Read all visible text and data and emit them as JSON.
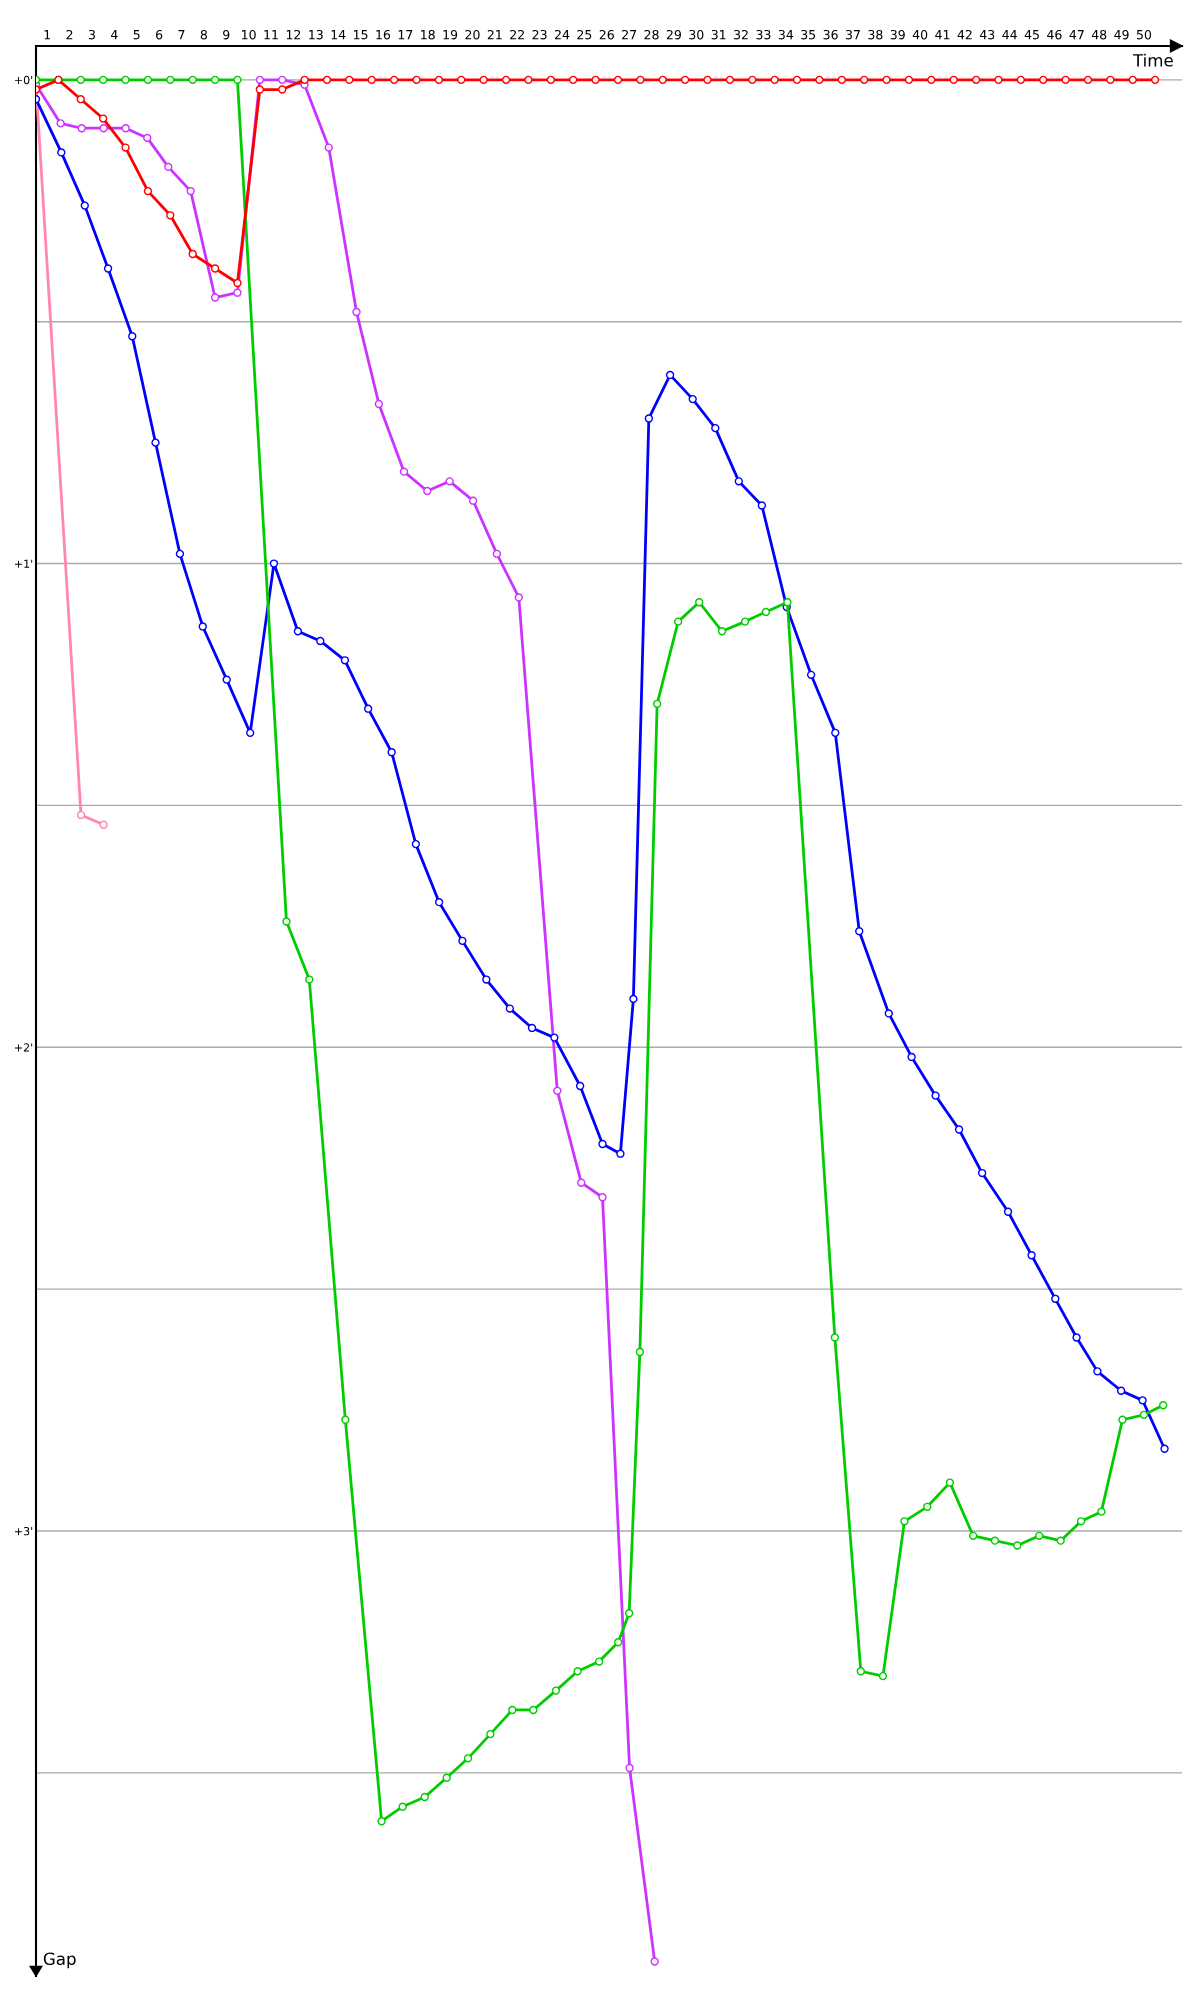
{
  "chart_data": {
    "type": "line",
    "xlabel": "Time",
    "ylabel": "Gap",
    "xlim": [
      0.5,
      51.7
    ],
    "ylim": [
      3.92,
      -0.07
    ],
    "xticks": [
      1,
      2,
      3,
      4,
      5,
      6,
      7,
      8,
      9,
      10,
      11,
      12,
      13,
      14,
      15,
      16,
      17,
      18,
      19,
      20,
      21,
      22,
      23,
      24,
      25,
      26,
      27,
      28,
      29,
      30,
      31,
      32,
      33,
      34,
      35,
      36,
      37,
      38,
      39,
      40,
      41,
      42,
      43,
      44,
      45,
      46,
      47,
      48,
      49,
      50
    ],
    "yticks": [
      {
        "value": 0,
        "label": "+0'"
      },
      {
        "value": 0.5,
        "label": null
      },
      {
        "value": 1,
        "label": "+1'"
      },
      {
        "value": 1.5,
        "label": null
      },
      {
        "value": 2,
        "label": "+2'"
      },
      {
        "value": 2.5,
        "label": null
      },
      {
        "value": 3,
        "label": "+3'"
      },
      {
        "value": 3.5,
        "label": null
      }
    ],
    "grid": "y",
    "marker": "circle",
    "line_style": "solid",
    "series": [
      {
        "color": "#ff88aa",
        "x": [
          0.5,
          2.51,
          3.52
        ],
        "values": [
          0.01,
          1.52,
          1.54
        ]
      },
      {
        "color": "#cc33ff",
        "x": [
          0.5,
          1.6,
          2.54,
          3.52,
          4.51,
          5.47,
          6.41,
          7.41,
          8.5,
          9.5,
          10.5,
          11.5,
          12.5,
          13.58,
          14.82,
          15.82,
          16.94,
          17.98,
          18.98,
          20.03,
          21.09,
          22.07,
          23.79,
          24.86,
          25.81,
          27.02,
          28.14
        ],
        "values": [
          0.01,
          0.09,
          0.1,
          0.1,
          0.1,
          0.12,
          0.18,
          0.23,
          0.45,
          0.44,
          0,
          0,
          0.01,
          0.14,
          0.48,
          0.67,
          0.81,
          0.85,
          0.83,
          0.87,
          0.98,
          1.07,
          2.09,
          2.28,
          2.31,
          3.49,
          3.89
        ]
      },
      {
        "color": "#0000ff",
        "x": [
          0.5,
          1.63,
          2.68,
          3.72,
          4.8,
          5.84,
          6.93,
          7.95,
          9.02,
          10.07,
          11.13,
          12.2,
          13.2,
          14.3,
          15.34,
          16.39,
          17.47,
          18.51,
          19.55,
          20.62,
          21.67,
          22.66,
          23.66,
          24.81,
          25.81,
          26.61,
          27.19,
          27.88,
          28.83,
          29.84,
          30.85,
          31.9,
          32.93,
          34.04,
          35.13,
          36.21,
          37.28,
          38.6,
          39.62,
          40.69,
          41.74,
          42.77,
          43.93,
          44.98,
          46.04,
          46.99,
          47.92,
          48.98,
          49.94,
          50.92
        ],
        "values": [
          0.04,
          0.15,
          0.26,
          0.39,
          0.53,
          0.75,
          0.98,
          1.13,
          1.24,
          1.35,
          1.0,
          1.14,
          1.16,
          1.2,
          1.3,
          1.39,
          1.58,
          1.7,
          1.78,
          1.86,
          1.92,
          1.96,
          1.98,
          2.08,
          2.2,
          2.22,
          1.9,
          0.7,
          0.61,
          0.66,
          0.72,
          0.83,
          0.88,
          1.09,
          1.23,
          1.35,
          1.76,
          1.93,
          2.02,
          2.1,
          2.17,
          2.26,
          2.34,
          2.43,
          2.52,
          2.6,
          2.67,
          2.71,
          2.73,
          2.83
        ]
      },
      {
        "color": "#00cc00",
        "x": [
          0.5,
          1.5,
          2.5,
          3.5,
          4.5,
          5.5,
          6.5,
          7.5,
          8.5,
          9.5,
          11.69,
          12.71,
          14.32,
          15.94,
          16.88,
          17.87,
          18.85,
          19.8,
          20.8,
          21.78,
          22.72,
          23.73,
          24.7,
          25.66,
          26.51,
          27.0,
          27.48,
          28.25,
          29.19,
          30.13,
          31.15,
          32.18,
          33.11,
          34.07,
          36.19,
          37.35,
          38.34,
          39.3,
          40.32,
          41.33,
          42.37,
          43.34,
          44.34,
          45.32,
          46.28,
          47.19,
          48.1,
          49.04,
          50.0,
          50.86
        ],
        "values": [
          0,
          0,
          0,
          0,
          0,
          0,
          0,
          0,
          0,
          0,
          1.74,
          1.86,
          2.77,
          3.6,
          3.57,
          3.55,
          3.51,
          3.47,
          3.42,
          3.37,
          3.37,
          3.33,
          3.29,
          3.27,
          3.23,
          3.17,
          2.63,
          1.29,
          1.12,
          1.08,
          1.14,
          1.12,
          1.1,
          1.08,
          2.6,
          3.29,
          3.3,
          2.98,
          2.95,
          2.9,
          3.01,
          3.02,
          3.03,
          3.01,
          3.02,
          2.98,
          2.96,
          2.77,
          2.76,
          2.74
        ]
      },
      {
        "color": "#ff0000",
        "x": [
          0.5,
          1.5,
          2.5,
          3.5,
          4.5,
          5.5,
          6.5,
          7.5,
          8.5,
          9.5,
          10.5,
          11.5,
          12.5,
          13.5,
          14.5,
          15.5,
          16.5,
          17.5,
          18.5,
          19.5,
          20.5,
          21.5,
          22.5,
          23.5,
          24.5,
          25.5,
          26.5,
          27.5,
          28.5,
          29.5,
          30.5,
          31.5,
          32.5,
          33.5,
          34.5,
          35.5,
          36.5,
          37.5,
          38.5,
          39.5,
          40.5,
          41.5,
          42.5,
          43.5,
          44.5,
          45.5,
          46.5,
          47.5,
          48.5,
          49.5,
          50.5
        ],
        "values": [
          0.02,
          0,
          0.04,
          0.08,
          0.14,
          0.23,
          0.28,
          0.36,
          0.39,
          0.42,
          0.02,
          0.02,
          0,
          0,
          0,
          0,
          0,
          0,
          0,
          0,
          0,
          0,
          0,
          0,
          0,
          0,
          0,
          0,
          0,
          0,
          0,
          0,
          0,
          0,
          0,
          0,
          0,
          0,
          0,
          0,
          0,
          0,
          0,
          0,
          0,
          0,
          0,
          0,
          0,
          0,
          0
        ]
      }
    ]
  }
}
